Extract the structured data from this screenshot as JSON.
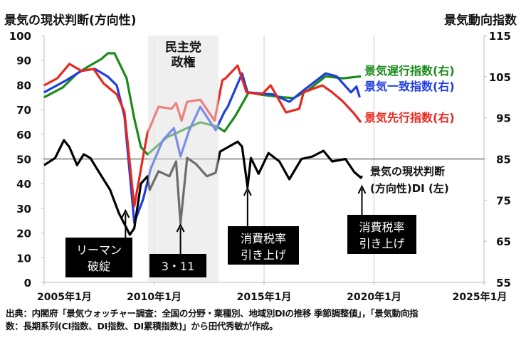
{
  "chart_data": {
    "type": "line",
    "left_axis_title": "景気の現状判断(方向性)",
    "right_axis_title": "景気動向指数",
    "left_ylim": [
      0,
      100
    ],
    "left_ticks": [
      "0",
      "10",
      "20",
      "30",
      "40",
      "50",
      "60",
      "70",
      "80",
      "90",
      "100"
    ],
    "right_ylim": [
      55,
      115
    ],
    "right_ticks": [
      "55",
      "65",
      "75",
      "85",
      "95",
      "105",
      "115"
    ],
    "xlim": [
      2005,
      2025
    ],
    "x_ticks": [
      {
        "value": 2005,
        "label": "2005年1月"
      },
      {
        "value": 2010,
        "label": "2010年1月"
      },
      {
        "value": 2015,
        "label": "2015年1月"
      },
      {
        "value": 2020,
        "label": "2020年1月"
      },
      {
        "value": 2025,
        "label": "2025年1月"
      }
    ],
    "reference_line_left": 50,
    "shaded_period": {
      "from": 2009.72,
      "to": 2012.93,
      "label_line1": "民主党",
      "label_line2": "政権"
    },
    "series": [
      {
        "name": "景気遅行指数(右)",
        "axis": "right",
        "color": "#1a8a1a",
        "x": [
          2005.0,
          2005.85,
          2006.5,
          2007.05,
          2007.6,
          2007.9,
          2008.2,
          2008.75,
          2009.1,
          2009.4,
          2009.7,
          2010.6,
          2011.5,
          2012.1,
          2012.85,
          2013.2,
          2013.7,
          2014.3,
          2014.9,
          2015.9,
          2016.35,
          2017.0,
          2017.8,
          2018.6,
          2019.4
        ],
        "y": [
          100,
          102.4,
          105.8,
          107.6,
          109.3,
          110.7,
          110.7,
          104.6,
          94.8,
          87.9,
          86.1,
          90.3,
          92.5,
          93.9,
          92.9,
          91.7,
          95.5,
          101.2,
          100.6,
          100,
          99.8,
          101.7,
          105.1,
          104.6,
          105.1
        ]
      },
      {
        "name": "景気一致指数(右)",
        "axis": "right",
        "color": "#1f3de0",
        "x": [
          2005.0,
          2006.0,
          2006.7,
          2007.3,
          2007.9,
          2008.3,
          2008.65,
          2009.1,
          2009.5,
          2009.85,
          2010.4,
          2010.9,
          2011.2,
          2011.6,
          2012.1,
          2012.8,
          2013.2,
          2013.35,
          2014.0,
          2014.25,
          2015.4,
          2016.15,
          2016.8,
          2017.8,
          2018.3,
          2018.95,
          2019.2,
          2019.35
        ],
        "y": [
          101.2,
          104.1,
          106.4,
          106.9,
          105,
          102.9,
          95.5,
          69.5,
          75.2,
          82.7,
          89.6,
          92.5,
          85.6,
          92,
          97.7,
          92,
          96.5,
          97.7,
          105.8,
          101.2,
          100.7,
          98.9,
          101.7,
          105.8,
          105.1,
          101.2,
          102.6,
          100
        ]
      },
      {
        "name": "景気先行指数(右)",
        "axis": "right",
        "color": "#e8281e",
        "x": [
          2005.0,
          2005.6,
          2006.15,
          2006.7,
          2007.25,
          2007.7,
          2008.3,
          2008.65,
          2009.1,
          2009.5,
          2009.7,
          2010.2,
          2010.8,
          2011.0,
          2011.25,
          2011.5,
          2012.1,
          2012.75,
          2013.1,
          2013.25,
          2013.8,
          2014.2,
          2014.9,
          2015.3,
          2016.0,
          2016.6,
          2016.8,
          2017.65,
          2018.1,
          2018.6,
          2019.1,
          2019.4
        ],
        "y": [
          102.9,
          104.6,
          108.1,
          106.4,
          106.9,
          103.4,
          100.7,
          96.5,
          73.5,
          85.6,
          91.3,
          97.7,
          97.2,
          98.6,
          94.3,
          98.9,
          99.4,
          94.3,
          104.1,
          104.6,
          107.7,
          101.2,
          100.7,
          102.9,
          96.3,
          97.2,
          101.2,
          102.9,
          101.2,
          98.9,
          96,
          93.9
        ]
      },
      {
        "name": "景気の現状判断(方向性)DI (左)",
        "axis": "left",
        "color": "#000000",
        "x": [
          2005.0,
          2005.5,
          2005.9,
          2006.15,
          2006.5,
          2006.8,
          2007.1,
          2007.6,
          2008.0,
          2008.4,
          2008.9,
          2009.1,
          2009.4,
          2009.7,
          2009.8,
          2010.2,
          2010.7,
          2011.0,
          2011.2,
          2011.5,
          2011.9,
          2012.4,
          2012.8,
          2013.0,
          2013.8,
          2014.0,
          2014.25,
          2014.4,
          2014.75,
          2015.2,
          2015.7,
          2016.15,
          2016.7,
          2017.2,
          2017.7,
          2018.1,
          2018.7,
          2019.1,
          2019.4,
          2019.45
        ],
        "y": [
          47.5,
          50.4,
          57.6,
          54.8,
          47.5,
          51.9,
          50.4,
          43.2,
          37.5,
          28,
          19.3,
          22,
          40,
          43,
          37.5,
          45,
          43,
          49,
          24,
          50.4,
          48,
          43,
          44.4,
          53,
          57,
          55,
          38.6,
          50.4,
          44,
          52.4,
          49,
          41.8,
          50,
          51,
          53.3,
          49,
          50,
          44.7,
          42.4,
          43.2
        ]
      }
    ],
    "series_labels": [
      "景気遅行指数(右)",
      "景気一致指数(右)",
      "景気先行指数(右)"
    ],
    "di_label_line1": "景気の現状判断",
    "di_label_line2": "(方向性)DI  (左)",
    "annotations": [
      {
        "x": 2008.7,
        "line1": "リーマン",
        "line2": "破綻"
      },
      {
        "x": 2011.2,
        "line1": "3・11",
        "line2": ""
      },
      {
        "x": 2014.25,
        "line1": "消費税率",
        "line2": "引き上げ"
      },
      {
        "x": 2019.45,
        "line1": "消費税率",
        "line2": "引き上げ"
      }
    ]
  },
  "source_line1": "出典：内閣府「景気ウォッチャー調査：全国の分野・業種別、地域別DIの推移 季節調整値」，「景気動向指",
  "source_line2": "数：長期系列(CI指数、DI指数、DI累積指数)」から田代秀敏が作成。"
}
